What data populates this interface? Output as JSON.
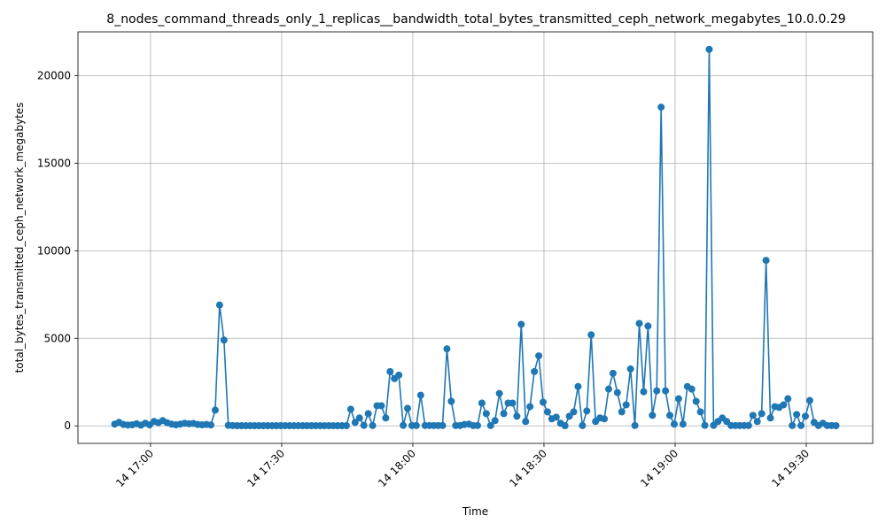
{
  "chart_data": {
    "type": "line",
    "title": "8_nodes_command_threads_only_1_replicas__bandwidth_total_bytes_transmitted_ceph_network_megabytes_10.0.0.29",
    "xlabel": "Time",
    "ylabel": "total_bytes_transmitted_ceph_network_megabytes",
    "x_tick_labels": [
      "14 17:00",
      "14 17:30",
      "14 18:00",
      "14 18:30",
      "14 19:00",
      "14 19:30"
    ],
    "y_tick_labels": [
      "0",
      "5000",
      "10000",
      "15000",
      "20000"
    ],
    "y_ticks": [
      0,
      5000,
      10000,
      15000,
      20000
    ],
    "ylim": [
      -1000,
      22500
    ],
    "xlim_minutes_from_17_00": [
      -16.6,
      165.2
    ],
    "x_tick_minutes": [
      0,
      30,
      60,
      90,
      120,
      150
    ],
    "grid": true,
    "line_color": "#1f77b4",
    "series": [
      {
        "x_minutes_from_17_00": [
          -8.2,
          -7.2,
          -6.2,
          -5.2,
          -4.2,
          -3.2,
          -2.2,
          -1.2,
          -0.2,
          0.8,
          1.8,
          2.8,
          3.8,
          4.8,
          5.8,
          6.8,
          7.8,
          8.8,
          9.8,
          10.8,
          11.8,
          12.8,
          13.8,
          14.8,
          15.8,
          16.8,
          17.8,
          18.8,
          19.8,
          20.8,
          21.8,
          22.8,
          23.8,
          24.8,
          25.8,
          26.8,
          27.8,
          28.8,
          29.8,
          30.8,
          31.8,
          32.8,
          33.8,
          34.8,
          35.8,
          36.8,
          37.8,
          38.8,
          39.8,
          40.8,
          41.8,
          42.8,
          43.8,
          44.8,
          45.8,
          46.8,
          47.8,
          48.8,
          49.8,
          50.8,
          51.8,
          52.8,
          53.8,
          54.8,
          55.8,
          56.8,
          57.8,
          58.8,
          59.8,
          60.8,
          61.8,
          62.8,
          63.8,
          64.8,
          65.8,
          66.8,
          67.8,
          68.8,
          69.8,
          70.8,
          71.8,
          72.8,
          73.8,
          74.8,
          75.8,
          76.8,
          77.8,
          78.8,
          79.8,
          80.8,
          81.8,
          82.8,
          83.8,
          84.8,
          85.8,
          86.8,
          87.8,
          88.8,
          89.8,
          90.8,
          91.8,
          92.8,
          93.8,
          94.8,
          95.8,
          96.8,
          97.8,
          98.8,
          99.8,
          100.8,
          101.8,
          102.8,
          103.8,
          104.8,
          105.8,
          106.8,
          107.8,
          108.8,
          109.8,
          110.8,
          111.8,
          112.8,
          113.8,
          114.8,
          115.8,
          116.8,
          117.8,
          118.8,
          119.8,
          120.8,
          121.8,
          122.8,
          123.8,
          124.8,
          125.8,
          126.8,
          127.8,
          128.8,
          129.8,
          130.8,
          131.8,
          132.8,
          133.8,
          134.8,
          135.8,
          136.8,
          137.8,
          138.8,
          139.8,
          140.8,
          141.8,
          142.8,
          143.8,
          144.8,
          145.8,
          146.8,
          147.8,
          148.8,
          149.8,
          150.8,
          151.8,
          152.8,
          153.8,
          154.8,
          155.8,
          156.8
        ],
        "values": [
          100,
          200,
          80,
          50,
          60,
          120,
          40,
          150,
          60,
          250,
          180,
          300,
          180,
          100,
          60,
          100,
          150,
          120,
          140,
          80,
          60,
          80,
          50,
          900,
          6900,
          4900,
          30,
          20,
          10,
          10,
          10,
          10,
          10,
          10,
          10,
          10,
          10,
          10,
          10,
          10,
          10,
          10,
          10,
          10,
          10,
          10,
          10,
          10,
          10,
          10,
          10,
          10,
          10,
          10,
          950,
          200,
          450,
          30,
          700,
          20,
          1150,
          1150,
          450,
          3100,
          2700,
          2900,
          30,
          1000,
          20,
          20,
          1750,
          20,
          20,
          20,
          20,
          20,
          4400,
          1400,
          20,
          20,
          80,
          100,
          20,
          20,
          1300,
          700,
          20,
          300,
          1850,
          700,
          1300,
          1300,
          550,
          5800,
          250,
          1100,
          3100,
          4000,
          1350,
          800,
          400,
          500,
          150,
          10,
          550,
          800,
          2250,
          20,
          850,
          5200,
          250,
          450,
          400,
          2100,
          3000,
          1900,
          800,
          1200,
          3250,
          20,
          5850,
          1950,
          5700,
          600,
          2000,
          18200,
          2000,
          600,
          100,
          1550,
          100,
          2250,
          2100,
          1400,
          800,
          30,
          21500,
          30,
          250,
          450,
          250,
          20,
          20,
          20,
          20,
          20,
          600,
          250,
          700,
          9450,
          450,
          1100,
          1050,
          1200,
          1550,
          20,
          650,
          20,
          550,
          1450,
          200,
          20,
          150,
          20,
          20,
          10,
          10
        ]
      }
    ]
  }
}
